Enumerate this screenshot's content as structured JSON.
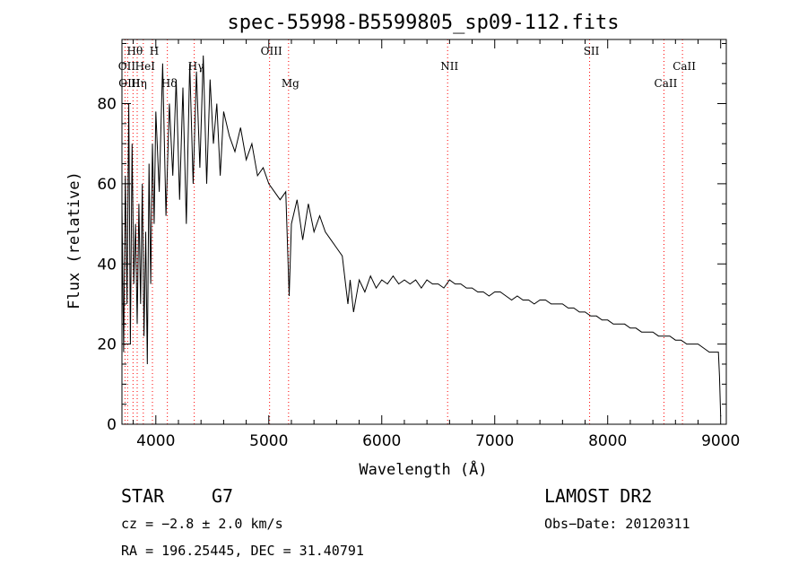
{
  "chart_data": {
    "type": "line",
    "title": "spec-55998-B5599805_sp09-112.fits",
    "xlabel": "Wavelength (Å)",
    "ylabel": "Flux (relative)",
    "xlim": [
      3700,
      9050
    ],
    "ylim": [
      0,
      96
    ],
    "xticks": [
      4000,
      5000,
      6000,
      7000,
      8000,
      9000
    ],
    "yticks": [
      0,
      20,
      40,
      60,
      80
    ],
    "grid": false,
    "line_color": "#000000",
    "marker_color": "#ff0000",
    "series": [
      {
        "x": [
          3700,
          3715,
          3730,
          3745,
          3760,
          3775,
          3790,
          3805,
          3820,
          3835,
          3850,
          3865,
          3880,
          3895,
          3910,
          3925,
          3940,
          3955,
          3970,
          3985,
          4000,
          4030,
          4060,
          4090,
          4120,
          4150,
          4180,
          4210,
          4240,
          4270,
          4300,
          4330,
          4360,
          4390,
          4420,
          4450,
          4480,
          4510,
          4540,
          4570,
          4600,
          4650,
          4700,
          4750,
          4800,
          4850,
          4900,
          4950,
          5000,
          5050,
          5100,
          5150,
          5180,
          5200,
          5250,
          5300,
          5350,
          5400,
          5450,
          5500,
          5550,
          5600,
          5650,
          5700,
          5720,
          5750,
          5800,
          5850,
          5900,
          5950,
          6000,
          6050,
          6100,
          6150,
          6200,
          6250,
          6300,
          6350,
          6400,
          6450,
          6500,
          6550,
          6600,
          6650,
          6700,
          6750,
          6800,
          6850,
          6900,
          6950,
          7000,
          7050,
          7100,
          7150,
          7200,
          7250,
          7300,
          7350,
          7400,
          7450,
          7500,
          7550,
          7600,
          7650,
          7700,
          7750,
          7800,
          7850,
          7900,
          7950,
          8000,
          8050,
          8100,
          8150,
          8200,
          8250,
          8300,
          8350,
          8400,
          8450,
          8500,
          8550,
          8600,
          8650,
          8700,
          8750,
          8800,
          8850,
          8900,
          8950,
          8980,
          8990,
          9000
        ],
        "values": [
          55,
          18,
          62,
          30,
          80,
          20,
          70,
          35,
          50,
          25,
          55,
          30,
          60,
          22,
          48,
          15,
          65,
          35,
          70,
          50,
          78,
          58,
          90,
          52,
          80,
          62,
          86,
          56,
          84,
          50,
          90,
          60,
          88,
          64,
          92,
          60,
          86,
          70,
          80,
          62,
          78,
          72,
          68,
          74,
          66,
          70,
          62,
          64,
          60,
          58,
          56,
          58,
          32,
          50,
          56,
          46,
          55,
          48,
          52,
          48,
          46,
          44,
          42,
          30,
          36,
          28,
          36,
          33,
          37,
          34,
          36,
          35,
          37,
          35,
          36,
          35,
          36,
          34,
          36,
          35,
          35,
          34,
          36,
          35,
          35,
          34,
          34,
          33,
          33,
          32,
          33,
          33,
          32,
          31,
          32,
          31,
          31,
          30,
          31,
          31,
          30,
          30,
          30,
          29,
          29,
          28,
          28,
          27,
          27,
          26,
          26,
          25,
          25,
          25,
          24,
          24,
          23,
          23,
          23,
          22,
          22,
          22,
          21,
          21,
          20,
          20,
          20,
          19,
          18,
          18,
          18,
          12,
          2
        ]
      }
    ],
    "lines": [
      {
        "label": "Hθ",
        "x": 3798,
        "row": 0
      },
      {
        "label": "H",
        "x": 3970,
        "row": 0
      },
      {
        "label": "OII",
        "x": 3727,
        "row": 1
      },
      {
        "label": "HeI",
        "x": 3889,
        "row": 1
      },
      {
        "label": "OIII",
        "x": 3750,
        "row": 2
      },
      {
        "label": "Hη",
        "x": 3835,
        "row": 2
      },
      {
        "label": "Hδ",
        "x": 4102,
        "row": 2
      },
      {
        "label": "Hγ",
        "x": 4340,
        "row": 1
      },
      {
        "label": "OIII",
        "x": 5007,
        "row": 0
      },
      {
        "label": "Mg",
        "x": 5175,
        "row": 2
      },
      {
        "label": "NII",
        "x": 6583,
        "row": 1
      },
      {
        "label": "SII",
        "x": 7840,
        "row": 0
      },
      {
        "label": "CaII",
        "x": 8498,
        "row": 2
      },
      {
        "label": "CaII",
        "x": 8662,
        "row": 1
      }
    ]
  },
  "info": {
    "object_type": "STAR",
    "subclass": "G7",
    "survey": "LAMOST DR2",
    "cz": "cz = −2.8 ± 2.0 km/s",
    "obs_date": "Obs−Date: 20120311",
    "coords": "RA = 196.25445, DEC =  31.40791"
  }
}
